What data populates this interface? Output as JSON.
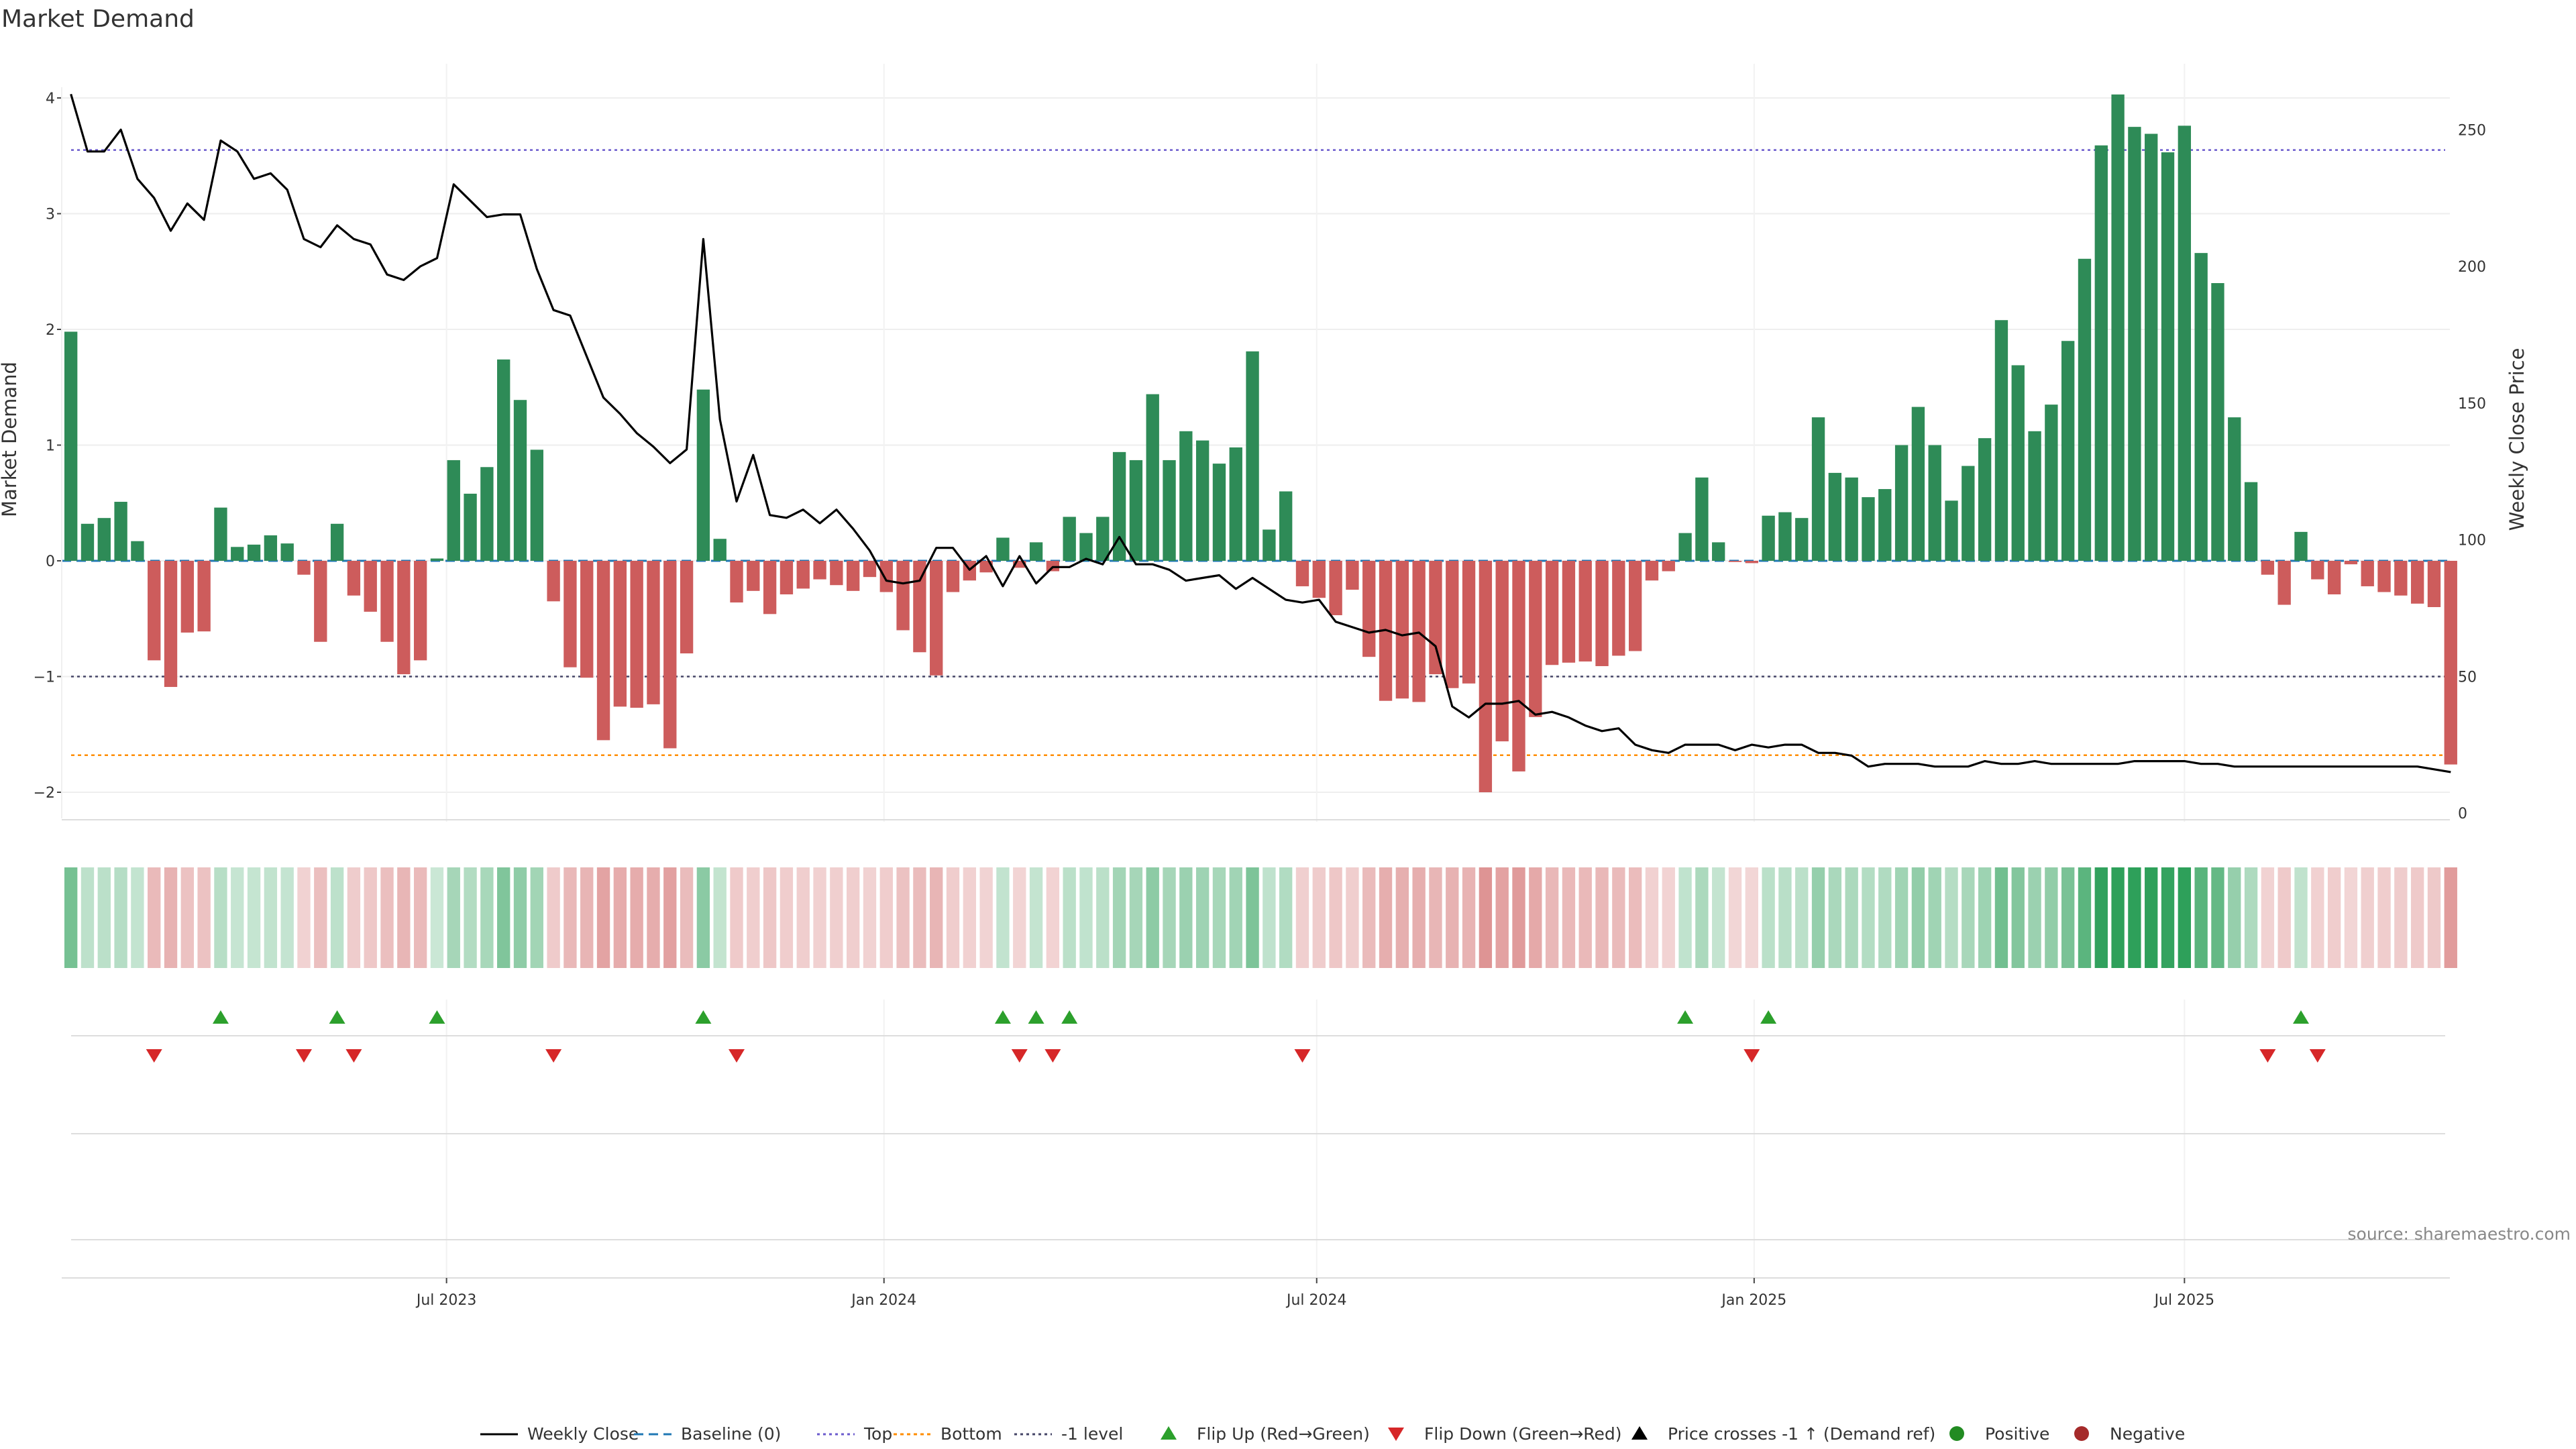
{
  "chart_data": {
    "type": "bar",
    "title": "Market Demand",
    "ylabel_left": "Market Demand",
    "ylabel_right": "Weekly Close Price",
    "ylim_left": [
      -2.2,
      4.4
    ],
    "ylim_right": [
      0,
      280
    ],
    "yticks_left": [
      -2,
      -1,
      0,
      1,
      2,
      3,
      4
    ],
    "yticks_left_labels": [
      "−2",
      "−1",
      "0",
      "1",
      "2",
      "3",
      "4"
    ],
    "yticks_right": [
      0,
      50,
      100,
      150,
      200,
      250
    ],
    "yticks_right_labels": [
      "0",
      "50",
      "100",
      "150",
      "200",
      "250"
    ],
    "x_start": "2023-01-24",
    "week_step_days": 7,
    "xticks": [
      "2023-07-01",
      "2024-01-01",
      "2024-07-01",
      "2025-01-01",
      "2025-07-01"
    ],
    "xtick_labels": [
      "Jul 2023",
      "Jan 2024",
      "Jul 2024",
      "Jan 2025",
      "Jul 2025"
    ],
    "reference_lines": {
      "baseline": 0,
      "top": 3.55,
      "bottom": -1.68,
      "minus_one": -1
    },
    "grid": true,
    "legend_position": "bottom-center",
    "source": "source: sharemaestro.com",
    "colors": {
      "positive": "#2e8b57",
      "negative": "#cd5c5c",
      "price": "#000000",
      "top": "#6a5acd",
      "bottom": "#ff8c00",
      "minus_one": "#444466",
      "baseline": "#1f77b4",
      "flip_up": "#2ca02c",
      "flip_down": "#d62728"
    },
    "series": [
      {
        "name": "Market Demand",
        "values": [
          1.98,
          0.32,
          0.37,
          0.51,
          0.17,
          -0.86,
          -1.09,
          -0.62,
          -0.61,
          0.46,
          0.12,
          0.14,
          0.22,
          0.15,
          -0.12,
          -0.7,
          0.32,
          -0.3,
          -0.44,
          -0.7,
          -0.98,
          -0.86,
          0.02,
          0.87,
          0.58,
          0.81,
          1.74,
          1.39,
          0.96,
          -0.35,
          -0.92,
          -1.01,
          -1.55,
          -1.26,
          -1.27,
          -1.24,
          -1.62,
          -0.8,
          1.48,
          0.19,
          -0.36,
          -0.26,
          -0.46,
          -0.29,
          -0.24,
          -0.16,
          -0.21,
          -0.26,
          -0.14,
          -0.27,
          -0.6,
          -0.79,
          -0.99,
          -0.27,
          -0.17,
          -0.1,
          0.2,
          -0.06,
          0.16,
          -0.09,
          0.38,
          0.24,
          0.38,
          0.94,
          0.87,
          1.44,
          0.87,
          1.12,
          1.04,
          0.84,
          0.98,
          1.81,
          0.27,
          0.6,
          -0.22,
          -0.32,
          -0.47,
          -0.25,
          -0.83,
          -1.21,
          -1.19,
          -1.22,
          -0.98,
          -1.1,
          -1.06,
          -2.0,
          -1.56,
          -1.82,
          -1.35,
          -0.9,
          -0.88,
          -0.87,
          -0.91,
          -0.82,
          -0.78,
          -0.17,
          -0.09,
          0.24,
          0.72,
          0.16,
          -0.01,
          -0.02,
          0.39,
          0.42,
          0.37,
          1.24,
          0.76,
          0.72,
          0.55,
          0.62,
          1.0,
          1.33,
          1.0,
          0.52,
          0.82,
          1.06,
          2.08,
          1.69,
          1.12,
          1.35,
          1.9,
          2.61,
          3.59,
          4.03,
          3.75,
          3.69,
          3.53,
          3.76,
          2.66,
          2.4,
          1.24,
          0.68,
          -0.12,
          -0.38,
          0.25,
          -0.16,
          -0.29,
          -0.03,
          -0.22,
          -0.27,
          -0.3,
          -0.37,
          -0.4,
          -1.76
        ]
      },
      {
        "name": "Weekly Close",
        "values": [
          263,
          242,
          242,
          250,
          232,
          225,
          213,
          223,
          217,
          246,
          242,
          232,
          234,
          228,
          210,
          207,
          215,
          210,
          208,
          197,
          195,
          200,
          203,
          230,
          224,
          218,
          219,
          219,
          199,
          184,
          182,
          167,
          152,
          146,
          139,
          134,
          128,
          133,
          210,
          144,
          114,
          131,
          109,
          108,
          111,
          106,
          111,
          104,
          96,
          85,
          84,
          85,
          97,
          97,
          89,
          94,
          83,
          94,
          84,
          90,
          90,
          93,
          91,
          101,
          91,
          91,
          89,
          85,
          86,
          87,
          82,
          86,
          82,
          78,
          77,
          78,
          70,
          68,
          66,
          67,
          65,
          66,
          61,
          39,
          35,
          40,
          40,
          41,
          36,
          37,
          35,
          32,
          30,
          31,
          25,
          23,
          22,
          25,
          25,
          25,
          23,
          25,
          24,
          25,
          25,
          22,
          22,
          21,
          17,
          18,
          18,
          18,
          17,
          17,
          17,
          19,
          18,
          18,
          19,
          18,
          18,
          18,
          18,
          18,
          19,
          19,
          19,
          19,
          18,
          18,
          17,
          17,
          17,
          17,
          17,
          17,
          17,
          17,
          17,
          17,
          17,
          17,
          16,
          15
        ]
      }
    ],
    "flip_up_index": [
      9,
      16,
      22,
      38,
      56,
      58,
      60,
      97,
      102,
      134
    ],
    "flip_down_index": [
      5,
      14,
      17,
      29,
      40,
      57,
      59,
      74,
      101,
      132,
      135
    ],
    "legend": [
      "Weekly Close",
      "Baseline (0)",
      "Top",
      "Bottom",
      "-1 level",
      "Flip Up (Red→Green)",
      "Flip Down (Green→Red)",
      "Price crosses -1 ↑ (Demand ref)",
      "Positive",
      "Negative"
    ]
  }
}
